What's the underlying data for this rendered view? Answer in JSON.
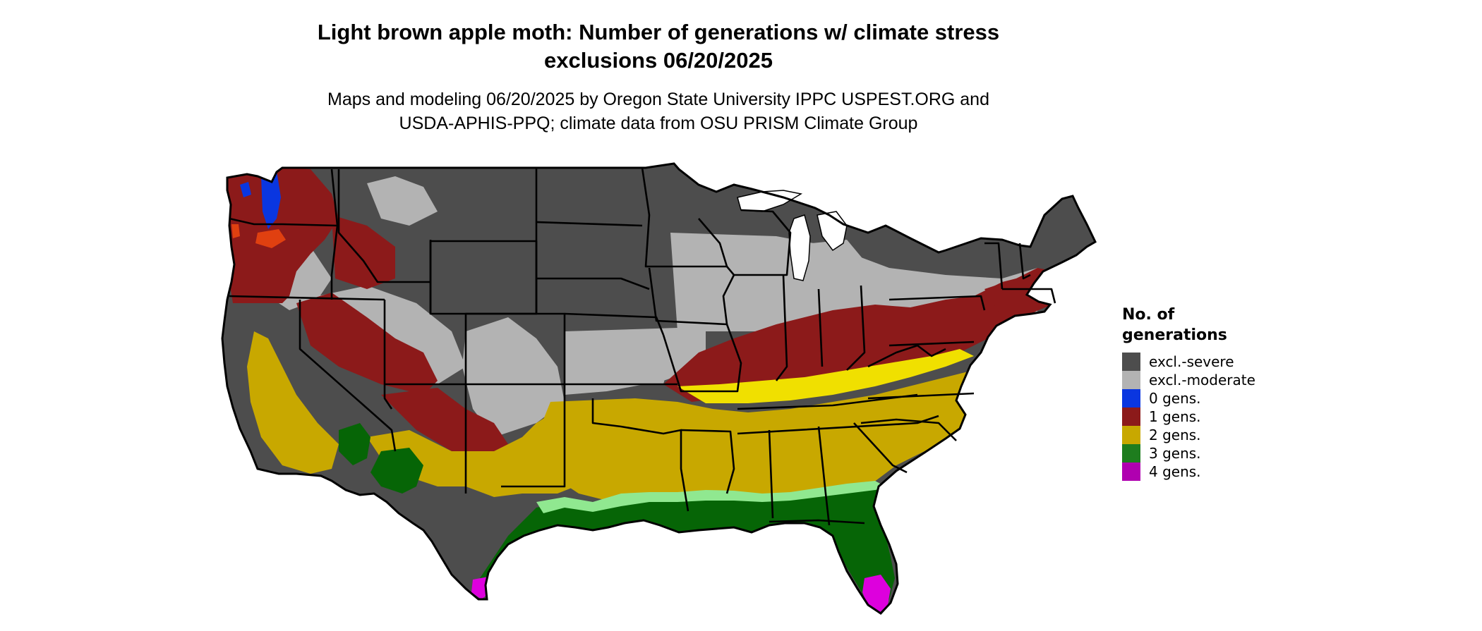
{
  "title": {
    "line1": "Light brown apple moth: Number of generations w/ climate stress",
    "line2": "exclusions 06/20/2025"
  },
  "subtitle": {
    "line1": "Maps and modeling 06/20/2025 by Oregon State University IPPC USPEST.ORG and",
    "line2": "USDA-APHIS-PPQ; climate data from OSU PRISM Climate Group"
  },
  "legend": {
    "title_line1": "No. of",
    "title_line2": "generations",
    "items": [
      {
        "label": "excl.-severe",
        "color": "#4d4d4d"
      },
      {
        "label": "excl.-moderate",
        "color": "#b3b3b3"
      },
      {
        "label": "0 gens.",
        "color": "#0a36e0"
      },
      {
        "label": "1 gens.",
        "color": "#8c1a1a"
      },
      {
        "label": "2 gens.",
        "color": "#c8a800"
      },
      {
        "label": "3 gens.",
        "color": "#1e7d1e"
      },
      {
        "label": "4 gens.",
        "color": "#b000b0"
      }
    ]
  },
  "map": {
    "region": "Contiguous United States",
    "colors": {
      "severe": "#4d4d4d",
      "moderate": "#b3b3b3",
      "zero": "#0a36e0",
      "one": "#8c1a1a",
      "two": "#c8a800",
      "two_light": "#f0e000",
      "three": "#066506",
      "three_light": "#90e890",
      "four": "#dd00dd",
      "orange_patch": "#e04010",
      "water": "#ffffff",
      "border": "#000000"
    }
  }
}
